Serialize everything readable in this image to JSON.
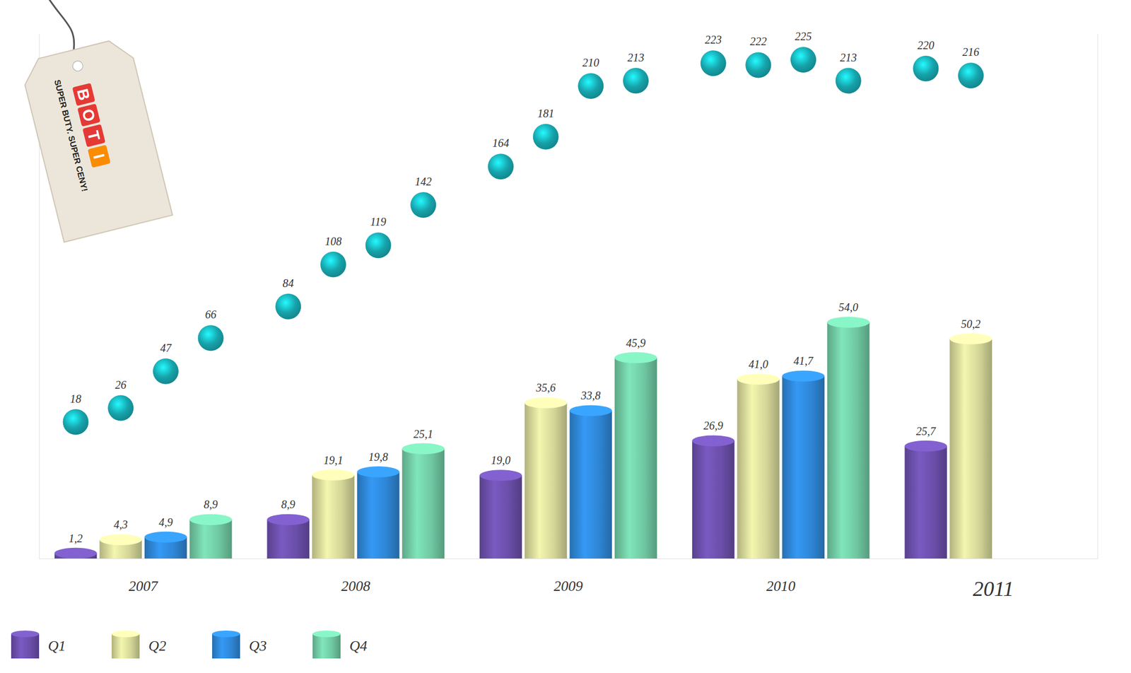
{
  "chart_data": {
    "type": "bar",
    "annotations": [
      "BOTI",
      "SUPER BUTY. SUPER CENY!"
    ],
    "categories": [
      "2007",
      "2008",
      "2009",
      "2010",
      "2011"
    ],
    "series": [
      {
        "name": "Q1",
        "color": "#6a4ea8",
        "values": [
          1.2,
          8.9,
          19.0,
          26.9,
          25.7
        ],
        "value_labels": [
          "1,2",
          "8,9",
          "19,0",
          "26,9",
          "25,7"
        ]
      },
      {
        "name": "Q2",
        "color": "#d3d597",
        "values": [
          4.3,
          19.1,
          35.6,
          41.0,
          50.2
        ],
        "value_labels": [
          "4,3",
          "19,1",
          "35,6",
          "41,0",
          "50,2"
        ]
      },
      {
        "name": "Q3",
        "color": "#2e85d4",
        "values": [
          4.9,
          19.8,
          33.8,
          41.7,
          null
        ],
        "value_labels": [
          "4,9",
          "19,8",
          "33,8",
          "41,7",
          null
        ]
      },
      {
        "name": "Q4",
        "color": "#6fc7a1",
        "values": [
          8.9,
          25.1,
          45.9,
          54.0,
          null
        ],
        "value_labels": [
          "8,9",
          "25,1",
          "45,9",
          "54,0",
          null
        ]
      },
      {
        "type": "scatter",
        "axis": "y2",
        "marker": "circle",
        "color": "#17a3ab",
        "values": [
          18,
          84,
          164,
          223,
          220
        ]
      },
      {
        "type": "scatter",
        "axis": "y2",
        "marker": "circle",
        "color": "#17a3ab",
        "values": [
          26,
          108,
          181,
          222,
          216
        ]
      },
      {
        "type": "scatter",
        "axis": "y2",
        "marker": "circle",
        "color": "#17a3ab",
        "values": [
          47,
          119,
          210,
          225,
          null
        ]
      },
      {
        "type": "scatter",
        "axis": "y2",
        "marker": "circle",
        "color": "#17a3ab",
        "values": [
          66,
          142,
          213,
          213,
          null
        ]
      }
    ],
    "ylim": [
      0,
      120
    ],
    "y2lim": [
      -60,
      240
    ],
    "data_labels": true,
    "tick_labels": "x",
    "legend": "bottom-left"
  }
}
